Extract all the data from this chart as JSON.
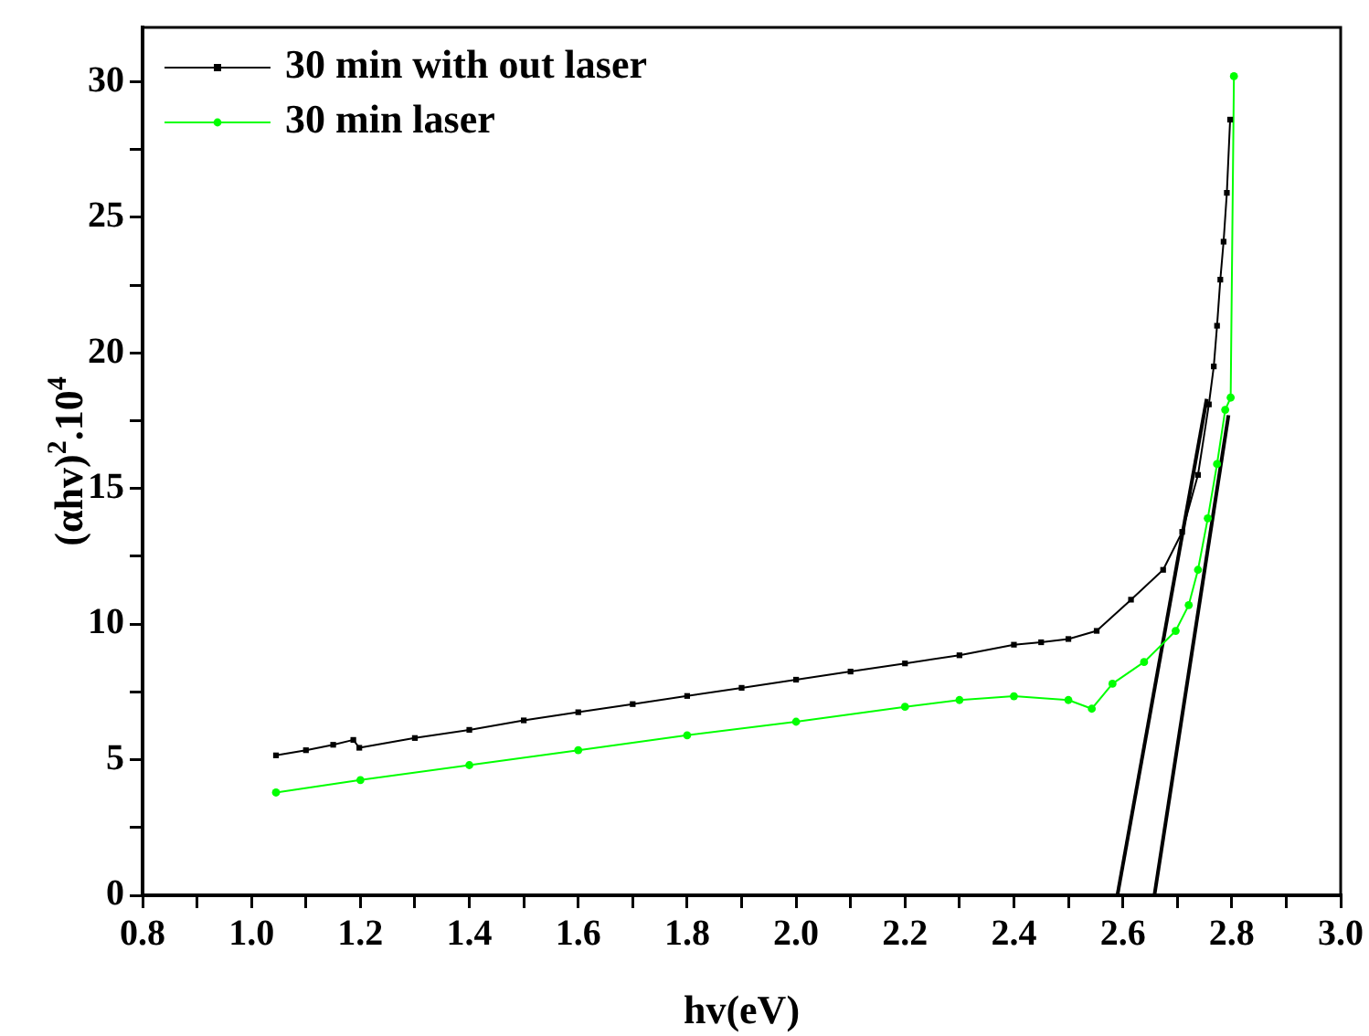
{
  "chart_data": {
    "type": "line",
    "xlabel": "hv(eV)",
    "ylabel": "(αhv)$^{2}$.10$^{4}$",
    "xlim": [
      0.8,
      3.0
    ],
    "ylim": [
      0,
      32
    ],
    "xticks": [
      0.8,
      {
        "value": 0.9,
        "label": null
      },
      {
        "value": 1,
        "label": "1.0"
      },
      {
        "value": 1.1,
        "label": null
      },
      1.2,
      {
        "value": 1.3,
        "label": null
      },
      1.4,
      {
        "value": 1.5,
        "label": null
      },
      1.6,
      {
        "value": 1.7,
        "label": null
      },
      1.8,
      {
        "value": 1.9,
        "label": null
      },
      {
        "value": 2,
        "label": "2.0"
      },
      {
        "value": 2.1,
        "label": null
      },
      2.2,
      {
        "value": 2.3,
        "label": null
      },
      2.4,
      {
        "value": 2.5,
        "label": null
      },
      2.6,
      {
        "value": 2.7,
        "label": null
      },
      2.8,
      {
        "value": 2.9,
        "label": null
      },
      {
        "value": 3,
        "label": "3.0"
      }
    ],
    "yticks": [
      0,
      {
        "value": 2.5,
        "label": null
      },
      5,
      {
        "value": 7.5,
        "label": null
      },
      10,
      {
        "value": 12.5,
        "label": null
      },
      15,
      {
        "value": 17.5,
        "label": null
      },
      20,
      {
        "value": 22.5,
        "label": null
      },
      25,
      {
        "value": 27.5,
        "label": null
      },
      30
    ],
    "grid": false,
    "legend": "top left",
    "series": [
      {
        "name": "30 min with out laser",
        "color": "#000000",
        "marker": "square",
        "x": [
          1.045,
          1.1,
          1.15,
          1.187,
          1.198,
          1.3,
          1.4,
          1.5,
          1.6,
          1.7,
          1.8,
          1.9,
          2.0,
          2.1,
          2.2,
          2.3,
          2.4,
          2.45,
          2.5,
          2.552,
          2.615,
          2.674,
          2.709,
          2.738,
          2.758,
          2.767,
          2.773,
          2.779,
          2.785,
          2.791,
          2.797
        ],
        "values": [
          5.16,
          5.35,
          5.55,
          5.73,
          5.44,
          5.8,
          6.1,
          6.45,
          6.75,
          7.05,
          7.35,
          7.65,
          7.95,
          8.25,
          8.55,
          8.85,
          9.24,
          9.33,
          9.45,
          9.75,
          10.9,
          12.0,
          13.4,
          15.5,
          18.1,
          19.5,
          21.0,
          22.7,
          24.1,
          25.9,
          28.6
        ]
      },
      {
        "name": "30 min laser",
        "color": "#00ff00",
        "marker": "circle",
        "x": [
          1.045,
          1.2,
          1.4,
          1.6,
          1.8,
          2.0,
          2.2,
          2.3,
          2.4,
          2.5,
          2.543,
          2.581,
          2.639,
          2.697,
          2.721,
          2.738,
          2.756,
          2.773,
          2.788,
          2.798,
          2.804
        ],
        "values": [
          3.79,
          4.25,
          4.8,
          5.35,
          5.9,
          6.4,
          6.95,
          7.2,
          7.34,
          7.2,
          6.88,
          7.8,
          8.6,
          9.75,
          10.7,
          12.0,
          13.9,
          15.9,
          17.9,
          18.35,
          30.2
        ]
      },
      {
        "type": "line",
        "color": "#000000",
        "marker": "none",
        "x": [
          2.59,
          2.754
        ],
        "values": [
          0,
          18.3
        ]
      },
      {
        "type": "line",
        "color": "#000000",
        "marker": "none",
        "x": [
          2.658,
          2.794
        ],
        "values": [
          0,
          17.7
        ]
      }
    ]
  }
}
